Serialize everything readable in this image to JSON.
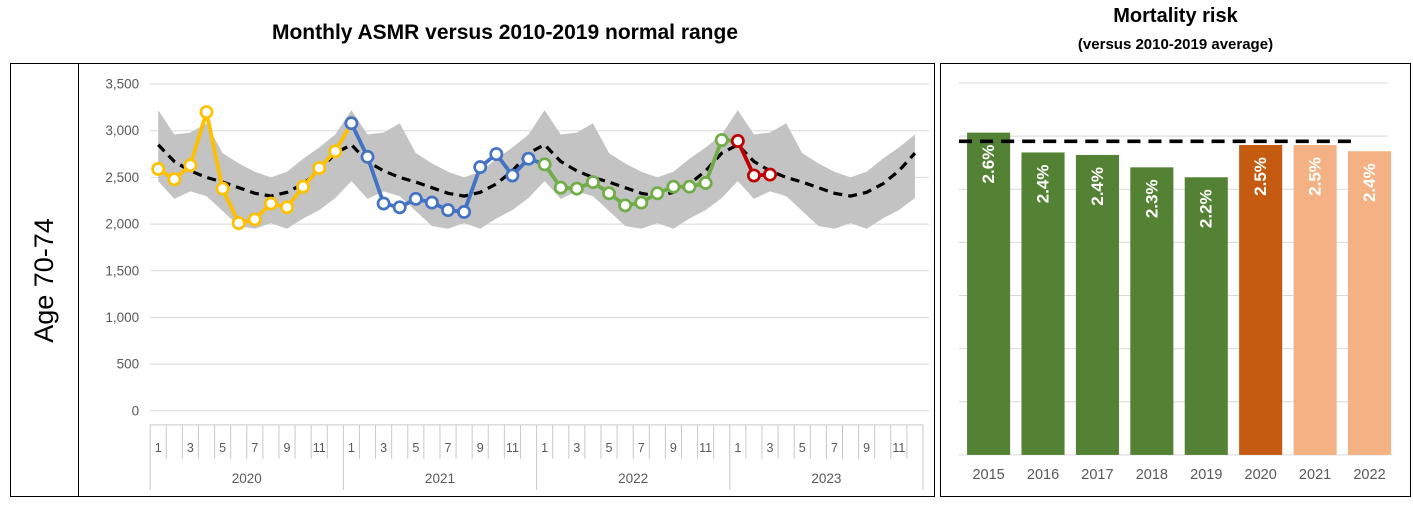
{
  "left_panel_row_label": "Age 70-74",
  "chart_data": [
    {
      "type": "line",
      "title": "Monthly ASMR versus 2010-2019 normal range",
      "row_label": "Age 70-74",
      "x_axis": {
        "years": [
          "2020",
          "2021",
          "2022",
          "2023"
        ],
        "months_per_year": 12,
        "month_tick_labels": [
          "1",
          "3",
          "5",
          "7",
          "9",
          "11"
        ],
        "month_tick_positions": [
          0,
          2,
          4,
          6,
          8,
          10
        ]
      },
      "y_axis": {
        "min": 0,
        "max": 3500,
        "step": 500,
        "tick_labels": [
          "3,500",
          "3,000",
          "2,500",
          "2,000",
          "1,500",
          "1,000",
          "500",
          "0"
        ]
      },
      "band": {
        "name": "2010-2019 normal range",
        "color": "#C3C3C3",
        "upper_by_month": [
          3220,
          2960,
          2980,
          3080,
          2760,
          2650,
          2560,
          2500,
          2560,
          2700,
          2820,
          2960
        ],
        "lower_by_month": [
          2460,
          2270,
          2350,
          2300,
          2140,
          1980,
          1950,
          2010,
          1950,
          2060,
          2150,
          2280
        ]
      },
      "average_line": {
        "name": "2010-2019 average",
        "style": "dashed",
        "color": "#000000",
        "values_by_month": [
          2850,
          2670,
          2570,
          2500,
          2450,
          2390,
          2330,
          2300,
          2340,
          2430,
          2570,
          2760
        ]
      },
      "series": [
        {
          "name": "2020",
          "color": "#FFC000",
          "values": [
            2590,
            2480,
            2630,
            3200,
            2380,
            2010,
            2050,
            2220,
            2180,
            2400,
            2600,
            2780
          ]
        },
        {
          "name": "2021",
          "color": "#4472C4",
          "values": [
            3080,
            2720,
            2220,
            2180,
            2270,
            2230,
            2150,
            2130,
            2610,
            2750,
            2520,
            2700
          ]
        },
        {
          "name": "2022",
          "color": "#70AD47",
          "values": [
            2640,
            2390,
            2380,
            2450,
            2330,
            2200,
            2230,
            2330,
            2400,
            2400,
            2440,
            2900
          ]
        },
        {
          "name": "2023",
          "color": "#C00000",
          "values": [
            2890,
            2520,
            2530
          ]
        }
      ],
      "grid_color": "#D9D9D9",
      "axis_text_color": "#595959",
      "legend": "none"
    },
    {
      "type": "bar",
      "title": "Mortality risk",
      "subtitle": "(versus 2010-2019 average)",
      "categories": [
        "2015",
        "2016",
        "2017",
        "2018",
        "2019",
        "2020",
        "2021",
        "2022"
      ],
      "values": [
        2.6,
        2.44,
        2.42,
        2.32,
        2.24,
        2.5,
        2.5,
        2.45
      ],
      "labels": [
        "2.6%",
        "2.4%",
        "2.4%",
        "2.3%",
        "2.2%",
        "2.5%",
        "2.5%",
        "2.4%"
      ],
      "bar_colors": [
        "#548235",
        "#548235",
        "#548235",
        "#548235",
        "#548235",
        "#C55A11",
        "#F4B183",
        "#F4B183"
      ],
      "label_color": "#FFFFFF",
      "reference_line": {
        "value": 2.53,
        "style": "dashed",
        "color": "#000000"
      },
      "ylim": [
        0,
        3.0
      ],
      "gridline_intervals": 7,
      "grid_color": "#D9D9D9",
      "axis_text_color": "#595959",
      "legend": "none"
    }
  ]
}
